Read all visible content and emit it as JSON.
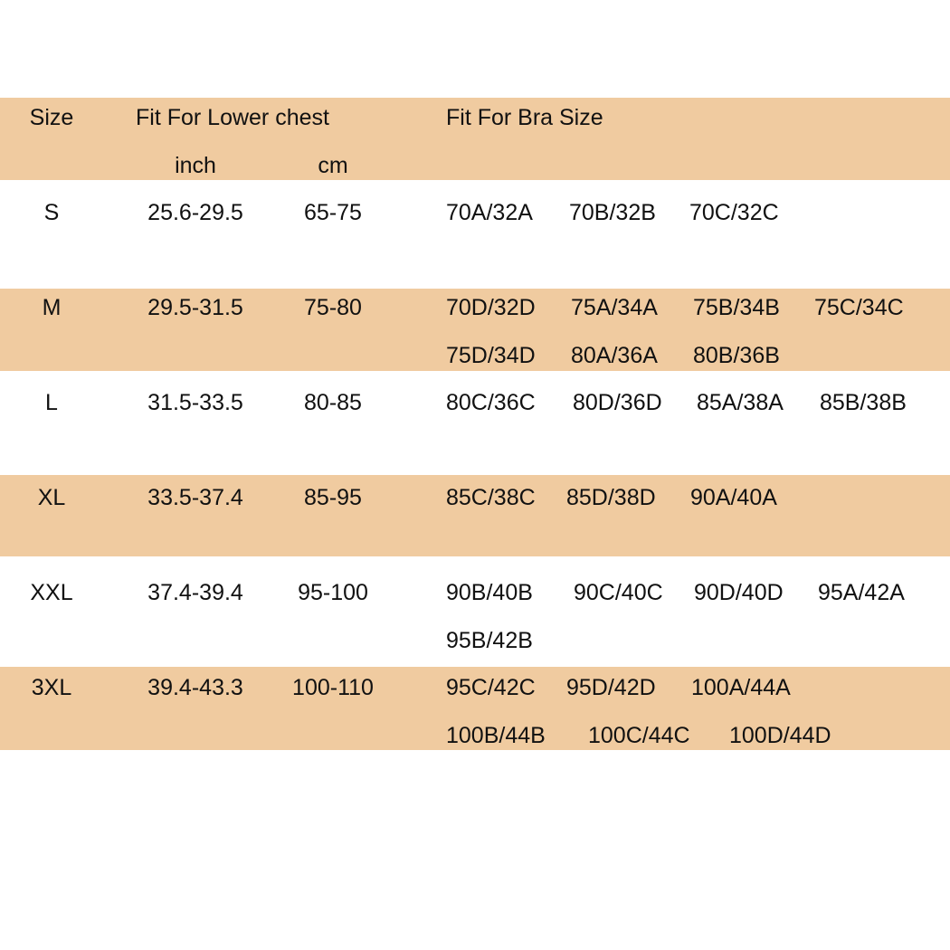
{
  "colors": {
    "band": "#f0cba0",
    "text": "#111111"
  },
  "header": {
    "size": "Size",
    "lower_chest": "Fit For Lower chest",
    "inch": "inch",
    "cm": "cm",
    "bra_size": "Fit For Bra Size"
  },
  "rows": [
    {
      "size": "S",
      "inch": "25.6-29.5",
      "cm": "65-75",
      "bra": [
        [
          "70A/32A",
          "70B/32B",
          "70C/32C"
        ]
      ]
    },
    {
      "size": "M",
      "inch": "29.5-31.5",
      "cm": "75-80",
      "bra": [
        [
          "70D/32D",
          "75A/34A",
          "75B/34B",
          "75C/34C"
        ],
        [
          "75D/34D",
          "80A/36A",
          "80B/36B"
        ]
      ]
    },
    {
      "size": "L",
      "inch": "31.5-33.5",
      "cm": "80-85",
      "bra": [
        [
          "80C/36C",
          "80D/36D",
          "85A/38A",
          "85B/38B"
        ]
      ]
    },
    {
      "size": "XL",
      "inch": "33.5-37.4",
      "cm": "85-95",
      "bra": [
        [
          "85C/38C",
          "85D/38D",
          "90A/40A"
        ]
      ]
    },
    {
      "size": "XXL",
      "inch": "37.4-39.4",
      "cm": "95-100",
      "bra": [
        [
          "90B/40B",
          "90C/40C",
          "90D/40D",
          "95A/42A"
        ],
        [
          "95B/42B"
        ]
      ]
    },
    {
      "size": "3XL",
      "inch": "39.4-43.3",
      "cm": "100-110",
      "bra": [
        [
          "95C/42C",
          "95D/42D",
          "100A/44A"
        ],
        [
          "100B/44B",
          "100C/44C",
          "100D/44D"
        ]
      ]
    }
  ]
}
